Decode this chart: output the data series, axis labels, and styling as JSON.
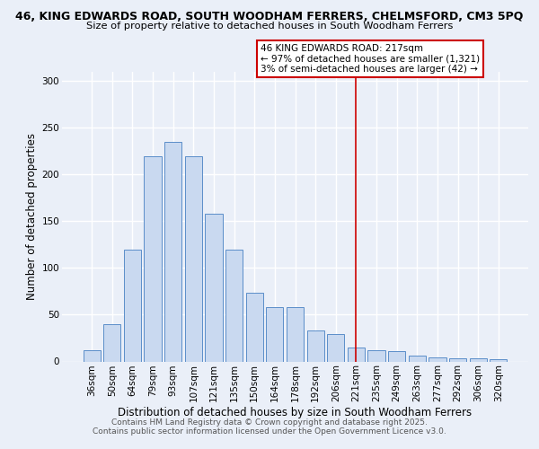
{
  "title_line1": "46, KING EDWARDS ROAD, SOUTH WOODHAM FERRERS, CHELMSFORD, CM3 5PQ",
  "title_line2": "Size of property relative to detached houses in South Woodham Ferrers",
  "xlabel": "Distribution of detached houses by size in South Woodham Ferrers",
  "ylabel": "Number of detached properties",
  "categories": [
    "36sqm",
    "50sqm",
    "64sqm",
    "79sqm",
    "93sqm",
    "107sqm",
    "121sqm",
    "135sqm",
    "150sqm",
    "164sqm",
    "178sqm",
    "192sqm",
    "206sqm",
    "221sqm",
    "235sqm",
    "249sqm",
    "263sqm",
    "277sqm",
    "292sqm",
    "306sqm",
    "320sqm"
  ],
  "values": [
    12,
    40,
    120,
    220,
    235,
    220,
    158,
    120,
    74,
    58,
    58,
    33,
    29,
    15,
    12,
    11,
    6,
    4,
    3,
    3,
    2
  ],
  "bar_color": "#c9d9f0",
  "bar_edge_color": "#5b8ec9",
  "background_color": "#eaeff8",
  "grid_color": "#ffffff",
  "vline_x": 13.0,
  "vline_color": "#cc0000",
  "annotation_title": "46 KING EDWARDS ROAD: 217sqm",
  "annotation_line2": "← 97% of detached houses are smaller (1,321)",
  "annotation_line3": "3% of semi-detached houses are larger (42) →",
  "annotation_box_color": "#cc0000",
  "ylim": [
    0,
    310
  ],
  "yticks": [
    0,
    50,
    100,
    150,
    200,
    250,
    300
  ],
  "footer_line1": "Contains HM Land Registry data © Crown copyright and database right 2025.",
  "footer_line2": "Contains public sector information licensed under the Open Government Licence v3.0.",
  "title_fontsize": 9.0,
  "subtitle_fontsize": 8.2,
  "axis_label_fontsize": 8.5,
  "tick_fontsize": 7.5,
  "annotation_fontsize": 7.5,
  "footer_fontsize": 6.5
}
